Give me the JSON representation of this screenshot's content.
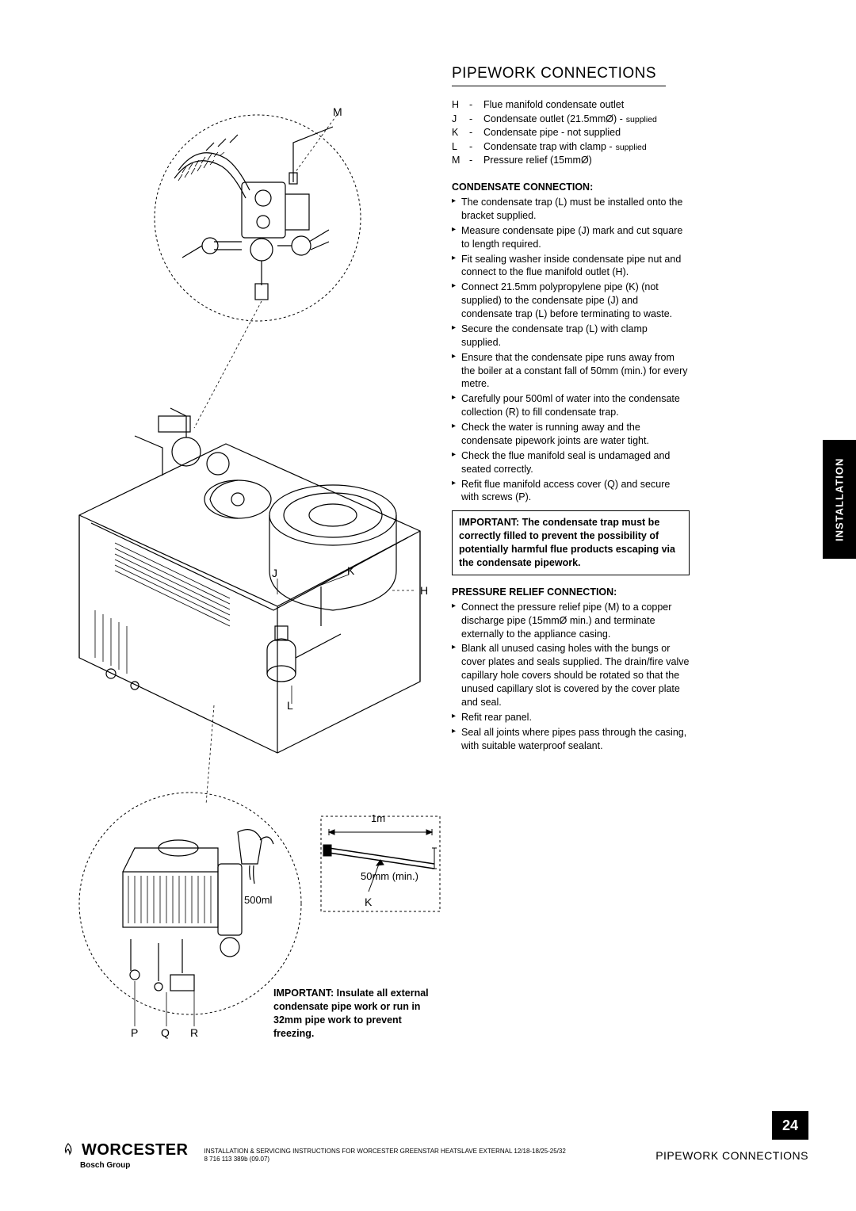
{
  "title": "PIPEWORK CONNECTIONS",
  "legend": [
    {
      "key": "H",
      "val": "Flue manifold condensate outlet",
      "suffix": ""
    },
    {
      "key": "J",
      "val": "Condensate outlet (21.5mmØ) -",
      "suffix": "supplied"
    },
    {
      "key": "K",
      "val": "Condensate pipe - not supplied",
      "suffix": ""
    },
    {
      "key": "L",
      "val": "Condensate trap with clamp -",
      "suffix": "supplied"
    },
    {
      "key": "M",
      "val": "Pressure relief (15mmØ)",
      "suffix": ""
    }
  ],
  "condensate_head": "CONDENSATE CONNECTION:",
  "condensate_bullets": [
    "The condensate trap (L) must be installed onto the bracket supplied.",
    "Measure condensate pipe (J) mark and cut square to length required.",
    "Fit sealing washer inside condensate pipe nut and connect to the flue manifold outlet (H).",
    "Connect 21.5mm polypropylene pipe (K) (not supplied) to the condensate pipe (J) and condensate trap (L) before terminating to waste.",
    "Secure the condensate trap (L) with clamp supplied.",
    "Ensure that the condensate pipe runs away from the boiler at a constant fall of 50mm (min.) for every metre.",
    "Carefully pour 500ml of water into the condensate collection (R) to fill condensate trap.",
    "Check the water is running away and the condensate pipework joints are water tight.",
    "Check the flue manifold seal is undamaged and seated correctly.",
    "Refit flue manifold access cover (Q) and secure with screws (P)."
  ],
  "important_box": "IMPORTANT: The condensate trap must be correctly filled to prevent the possibility of potentially harmful flue products escaping via the condensate pipework.",
  "pressure_head": "PRESSURE RELIEF CONNECTION:",
  "pressure_bullets": [
    "Connect the pressure relief pipe (M) to a copper discharge pipe (15mmØ min.) and terminate externally to the appliance casing.",
    "Blank all unused casing holes with the bungs or cover plates and seals supplied. The drain/fire valve capillary hole covers should be rotated so that the unused capillary slot is covered by the cover plate and seal.",
    "Refit rear panel.",
    "Seal all joints where pipes pass through the casing, with suitable waterproof sealant."
  ],
  "side_tab": "INSTALLATION",
  "diagram_labels": {
    "M": "M",
    "J": "J",
    "K1": "K",
    "H": "H",
    "L": "L",
    "dim_1m": "1m",
    "dim_50mm": "50mm (min.)",
    "K2": "K",
    "ml500": "500ml",
    "P": "P",
    "Q": "Q",
    "R": "R"
  },
  "bottom_note": "IMPORTANT: Insulate all external condensate pipe work or run in 32mm pipe work to prevent freezing.",
  "footer": {
    "logo_word": "WORCESTER",
    "logo_sub": "Bosch Group",
    "line1": "INSTALLATION & SERVICING INSTRUCTIONS FOR WORCESTER GREENSTAR HEATSLAVE EXTERNAL 12/18-18/25-25/32",
    "line2": "8 716 113 389b (09.07)",
    "right": "PIPEWORK CONNECTIONS"
  },
  "page_number": "24"
}
